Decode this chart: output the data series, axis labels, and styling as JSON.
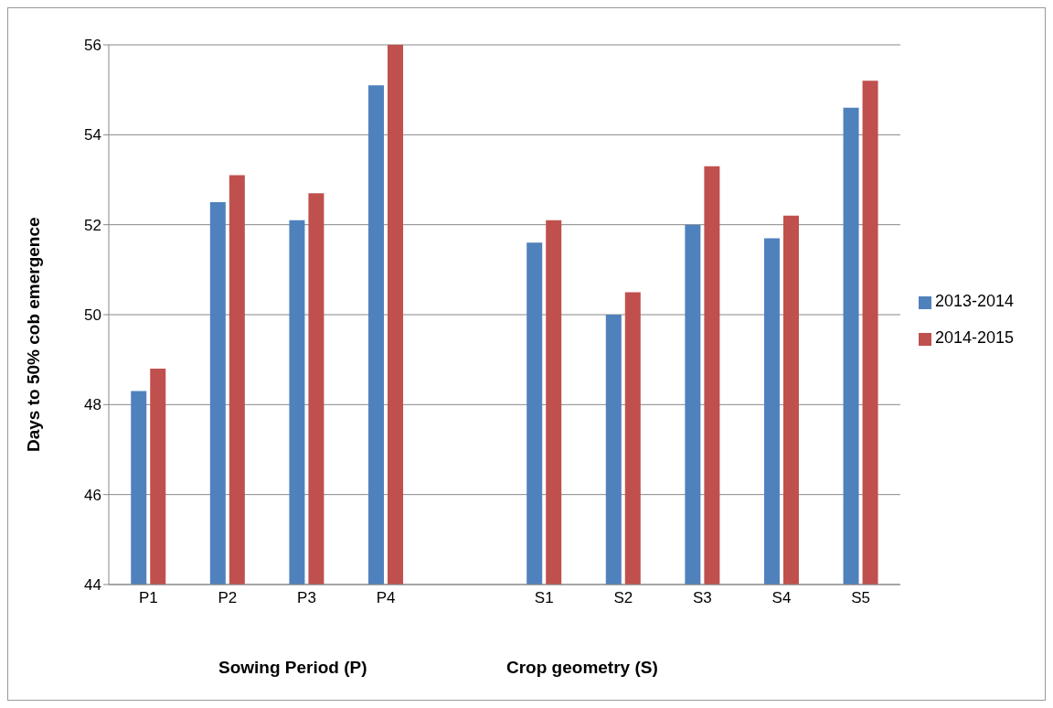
{
  "chart_data": {
    "type": "bar",
    "ylabel": "Days to 50% cob emergence",
    "xlabel": "Sowing Period (P)",
    "annotations": [
      "Crop geometry (S)"
    ],
    "categories": [
      "P1",
      "P2",
      "P3",
      "P4",
      null,
      "S1",
      "S2",
      "S3",
      "S4",
      "S5"
    ],
    "series": [
      {
        "name": "2013-2014",
        "color": "#4f81bd",
        "values": [
          48.3,
          52.5,
          52.1,
          55.1,
          null,
          51.6,
          50.0,
          52.0,
          51.7,
          54.6
        ]
      },
      {
        "name": "2014-2015",
        "color": "#c0504d",
        "values": [
          48.8,
          53.1,
          52.7,
          56.0,
          null,
          52.1,
          50.5,
          53.3,
          52.2,
          55.2
        ]
      }
    ],
    "ylim": [
      44,
      56
    ],
    "yticks": [
      44,
      46,
      48,
      50,
      52,
      54,
      56
    ],
    "grid": "y",
    "legend": "right"
  }
}
